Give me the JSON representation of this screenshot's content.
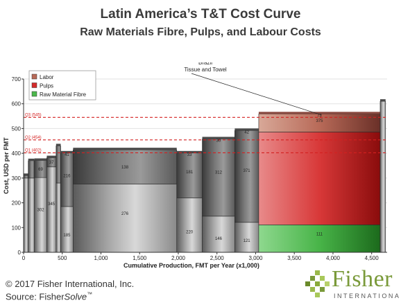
{
  "header": {
    "title": "Latin America’s T&T Cost Curve",
    "subtitle": "Raw Materials Fibre, Pulps, and Labour Costs"
  },
  "footer": {
    "copyright": "© 2017 Fisher International, Inc.",
    "source_prefix": "Source: Fisher",
    "source_italic": "Solve",
    "source_tm": "™"
  },
  "logo": {
    "name": "Fisher",
    "sub": "INTERNATIONAL"
  },
  "chart_data": {
    "type": "bar",
    "subtype": "cost-curve (variable-width stacked bars)",
    "xlabel": "Cumulative Production, FMT per Year (x1,000)",
    "ylabel": "Cost, USD per FMT",
    "xlim": [
      0,
      4700
    ],
    "ylim": [
      0,
      700
    ],
    "x_ticks": [
      "0",
      "500",
      "1,000",
      "1,500",
      "2,000",
      "2,500",
      "3,000",
      "3,500",
      "4,000",
      "4,500"
    ],
    "x_tick_values": [
      0,
      500,
      1000,
      1500,
      2000,
      2500,
      3000,
      3500,
      4000,
      4500
    ],
    "y_ticks": [
      "0",
      "100",
      "200",
      "300",
      "400",
      "500",
      "600",
      "700"
    ],
    "y_tick_values": [
      0,
      100,
      200,
      300,
      400,
      500,
      600,
      700
    ],
    "legend": [
      "Labor",
      "Pulps",
      "Raw Material Fibre"
    ],
    "legend_position": "top-left",
    "colors": {
      "Labor": "#b86a58",
      "Pulps": "#d42a2a",
      "Raw Material Fibre": "#4cb84c",
      "reference_line": "#d42020"
    },
    "reference_lines": [
      {
        "label": "Q3 (545)",
        "value": 545
      },
      {
        "label": "Q2 (454)",
        "value": 454
      },
      {
        "label": "Q1 (402)",
        "value": 402
      }
    ],
    "bars": [
      {
        "x0": 0,
        "x1": 60,
        "fibre": 0,
        "pulps": 300,
        "labor": 10,
        "labels": []
      },
      {
        "x0": 60,
        "x1": 140,
        "fibre": 0,
        "pulps": 300,
        "labor": 70,
        "labels": []
      },
      {
        "x0": 140,
        "x1": 300,
        "fibre": 0,
        "pulps": 302,
        "labor": 69,
        "labels": [
          "69",
          "302"
        ]
      },
      {
        "x0": 300,
        "x1": 420,
        "fibre": 0,
        "pulps": 345,
        "labor": 37,
        "labels": [
          "37",
          "345"
        ]
      },
      {
        "x0": 420,
        "x1": 480,
        "fibre": 0,
        "pulps": 280,
        "labor": 150,
        "labels": []
      },
      {
        "x0": 480,
        "x1": 640,
        "fibre": 0,
        "pulps": 185,
        "labor": 216,
        "labels": [
          "41",
          "216",
          "185"
        ]
      },
      {
        "x0": 640,
        "x1": 1980,
        "fibre": 0,
        "pulps": 276,
        "labor": 138,
        "labels": [
          "138",
          "276"
        ]
      },
      {
        "x0": 1980,
        "x1": 2310,
        "fibre": 0,
        "pulps": 220,
        "labor": 181,
        "labels": [
          "33",
          "181",
          "220"
        ]
      },
      {
        "x0": 2310,
        "x1": 2730,
        "fibre": 0,
        "pulps": 146,
        "labor": 312,
        "labels": [
          "30",
          "312",
          "146"
        ]
      },
      {
        "x0": 2730,
        "x1": 3040,
        "fibre": 0,
        "pulps": 121,
        "labor": 371,
        "labels": [
          "42",
          "371",
          "121"
        ]
      },
      {
        "x0": 3040,
        "x1": 4610,
        "fibre": 111,
        "pulps": 375,
        "labor": 73,
        "labels": [
          "73",
          "375",
          "111"
        ]
      },
      {
        "x0": 4610,
        "x1": 4680,
        "fibre": 0,
        "pulps": 610,
        "labor": 0,
        "labels": []
      }
    ],
    "annotations": [
      {
        "text": "Brazil",
        "x": 3850,
        "y": 555
      },
      {
        "text": "Tissue and Towel",
        "x": 3850,
        "y": 555
      }
    ]
  }
}
